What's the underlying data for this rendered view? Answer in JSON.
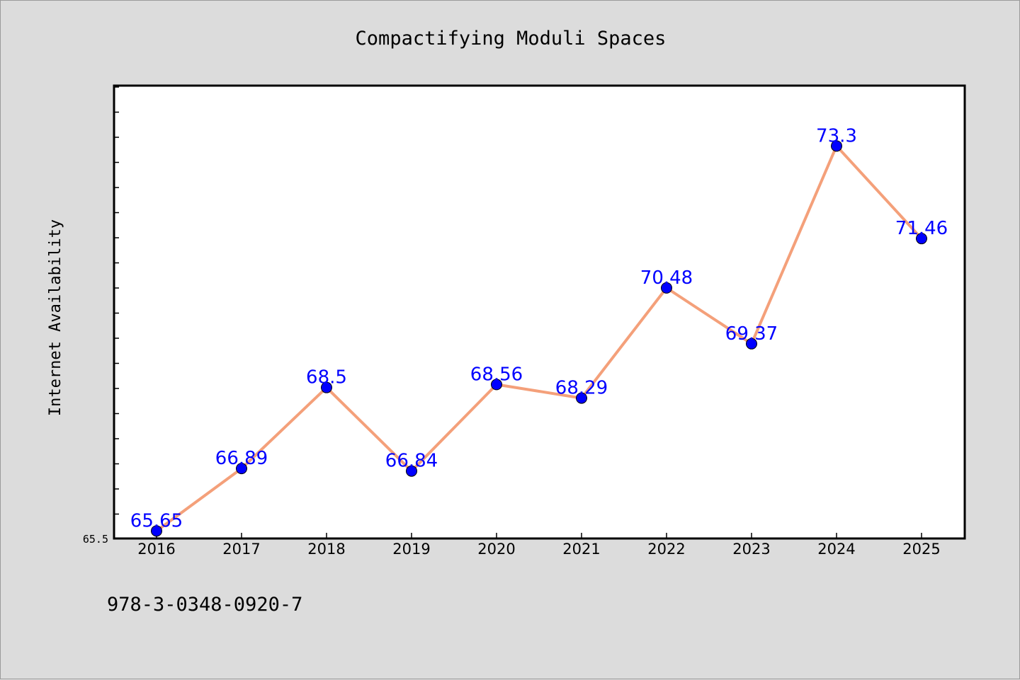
{
  "chart_data": {
    "type": "line",
    "title": "Compactifying Moduli Spaces",
    "xlabel": "",
    "ylabel": "Internet Availability",
    "x": [
      "2016",
      "2017",
      "2018",
      "2019",
      "2020",
      "2021",
      "2022",
      "2023",
      "2024",
      "2025"
    ],
    "series": [
      {
        "values": [
          65.65,
          66.89,
          68.5,
          66.84,
          68.56,
          68.29,
          70.48,
          69.37,
          73.3,
          71.46
        ],
        "data_labels": [
          "65.65",
          "66.89",
          "68.5",
          "66.84",
          "68.56",
          "68.29",
          "70.48",
          "69.37",
          "73.3",
          "71.46"
        ],
        "line_color": "#f4a07a",
        "marker_color": "#0000ff",
        "label_color": "#0000ff"
      }
    ],
    "ylim": [
      65.5,
      74.5
    ],
    "y_tick_labels": [
      "65.5"
    ],
    "grid": false,
    "legend": "none"
  },
  "footnote": "978-3-0348-0920-7",
  "colors": {
    "background": "#dcdcdc",
    "plot_background": "#ffffff",
    "line": "#f4a07a",
    "marker": "#0000ff",
    "label": "#0000ff"
  }
}
